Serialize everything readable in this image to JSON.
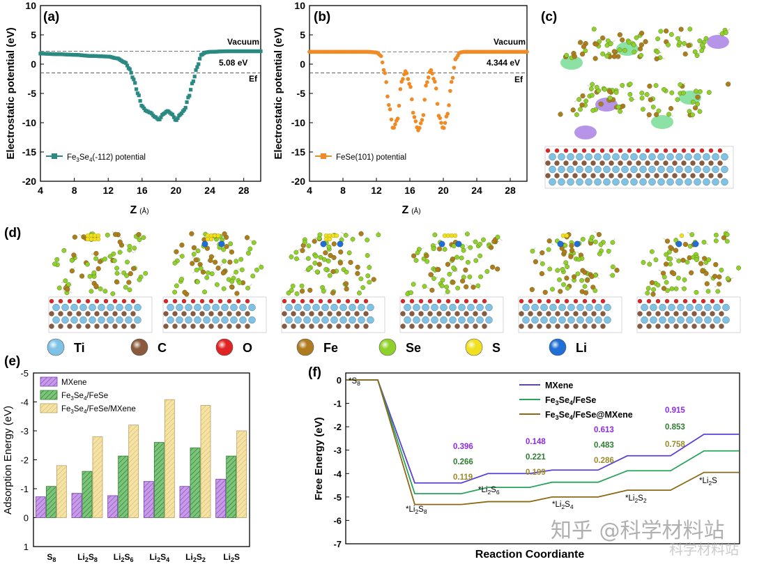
{
  "chart_data": [
    {
      "id": "a",
      "type": "line",
      "panel_label": "(a)",
      "xlabel": "Z",
      "xunit": "(Å)",
      "ylabel": "Electrostatic potential (eV)",
      "xlim": [
        4,
        30
      ],
      "ylim": [
        -20,
        10
      ],
      "xticks": [
        4,
        8,
        12,
        16,
        20,
        24,
        28
      ],
      "yticks": [
        10,
        5,
        0,
        -5,
        -10,
        -15,
        -20
      ],
      "color": "#2a8a82",
      "vacuum_level": 2.2,
      "fermi_level": -1.5,
      "vacuum_label": "Vacuum",
      "fermi_label": "Ef",
      "work_function_label": "5.08 eV",
      "legend": "Fe3Se4(-112) potential",
      "series": {
        "x": [
          4,
          6,
          8,
          10,
          12,
          13,
          14,
          14.5,
          15,
          15.5,
          16,
          16.5,
          17,
          17.5,
          18,
          18.5,
          19,
          19.5,
          20,
          20.5,
          21,
          21.5,
          22,
          22.5,
          23,
          23.5,
          24,
          26,
          28,
          30
        ],
        "y": [
          1.8,
          1.7,
          1.6,
          1.4,
          1.3,
          1.0,
          0.3,
          -0.8,
          -2.6,
          -5.0,
          -7.2,
          -8.0,
          -8.3,
          -9.0,
          -9.5,
          -8.5,
          -8.0,
          -8.5,
          -9.6,
          -8.6,
          -7.8,
          -5.6,
          -3.0,
          -0.5,
          1.6,
          2.0,
          2.1,
          2.2,
          2.2,
          2.2
        ]
      }
    },
    {
      "id": "b",
      "type": "line",
      "panel_label": "(b)",
      "xlabel": "Z",
      "xunit": "(Å)",
      "ylabel": "Electrostatic potential (eV)",
      "xlim": [
        4,
        30
      ],
      "ylim": [
        -20,
        10
      ],
      "xticks": [
        4,
        8,
        12,
        16,
        20,
        24,
        28
      ],
      "yticks": [
        10,
        5,
        0,
        -5,
        -10,
        -15,
        -20
      ],
      "color": "#f08a24",
      "vacuum_level": 2.1,
      "fermi_level": -1.5,
      "vacuum_label": "Vacuum",
      "fermi_label": "Ef",
      "work_function_label": "4.344 eV",
      "legend": "FeSe(101) potential",
      "series": {
        "x": [
          4,
          6,
          8,
          10,
          11,
          12,
          12.5,
          13,
          13.5,
          14,
          14.5,
          15,
          15.5,
          16,
          16.5,
          17,
          17.5,
          18,
          18.5,
          19,
          19.5,
          20,
          20.5,
          21,
          21.5,
          22,
          22.5,
          23,
          24,
          26,
          28,
          30
        ],
        "y": [
          2.1,
          2.1,
          2.1,
          2.1,
          2.1,
          2.0,
          1.5,
          -1.5,
          -7.0,
          -11.0,
          -9.5,
          -3.0,
          -1.2,
          -3.5,
          -9.0,
          -11.3,
          -9.5,
          -3.2,
          -1.0,
          -3.0,
          -9.0,
          -11.0,
          -8.5,
          -3.0,
          1.0,
          2.0,
          2.1,
          2.1,
          2.1,
          2.1,
          2.1,
          2.1
        ]
      }
    },
    {
      "id": "e",
      "type": "bar",
      "panel_label": "(e)",
      "ylabel": "Adsorption Energy (eV)",
      "ylim": [
        1,
        -5
      ],
      "yticks": [
        -5,
        -4,
        -3,
        -2,
        -1,
        0,
        1
      ],
      "categories": [
        "S8",
        "Li2S8",
        "Li2S6",
        "Li2S4",
        "Li2S2",
        "Li2S"
      ],
      "category_labels": [
        {
          "main": "S",
          "sub": "8",
          "tail": ""
        },
        {
          "main": "Li",
          "sub": "2",
          "tail": "S",
          "sub2": "8"
        },
        {
          "main": "Li",
          "sub": "2",
          "tail": "S",
          "sub2": "6"
        },
        {
          "main": "Li",
          "sub": "2",
          "tail": "S",
          "sub2": "4"
        },
        {
          "main": "Li",
          "sub": "2",
          "tail": "S",
          "sub2": "2"
        },
        {
          "main": "Li",
          "sub": "2",
          "tail": "S",
          "sub2": ""
        }
      ],
      "series": [
        {
          "name": "MXene",
          "color": "#b27ad9",
          "values": [
            -0.72,
            -0.84,
            -0.76,
            -1.25,
            -1.08,
            -1.33
          ]
        },
        {
          "name": "Fe3Se4/FeSe",
          "color": "#5cb35c",
          "values": [
            -1.08,
            -1.6,
            -2.13,
            -2.6,
            -2.41,
            -2.13
          ]
        },
        {
          "name": "Fe3Se4/FeSe/MXene",
          "color": "#f0dc9a",
          "values": [
            -1.8,
            -2.8,
            -3.2,
            -4.08,
            -3.88,
            -3.0
          ]
        }
      ]
    },
    {
      "id": "f",
      "type": "line",
      "panel_label": "(f)",
      "xlabel": "Reaction Coordiante",
      "ylabel": "Free Energy (eV)",
      "ylim": [
        -7,
        0
      ],
      "yticks": [
        0,
        -1,
        -2,
        -3,
        -4,
        -5,
        -6,
        -7
      ],
      "steps": [
        "*S8",
        "*Li2S8",
        "*Li2S6",
        "*Li2S4",
        "*Li2S2",
        "*Li2S"
      ],
      "series": [
        {
          "name": "MXene",
          "color": "#5b3fd6",
          "values": [
            0,
            -4.4,
            -4.0,
            -3.85,
            -3.24,
            -2.32
          ],
          "step_labels": [
            "0.396",
            "0.148",
            "0.613",
            "0.915"
          ],
          "label_color": "#8a2be2"
        },
        {
          "name": "Fe3Se4/FeSe",
          "color": "#27a35a",
          "values": [
            0,
            -4.86,
            -4.59,
            -4.37,
            -3.88,
            -3.03
          ],
          "step_labels": [
            "0.266",
            "0.221",
            "0.483",
            "0.853"
          ],
          "label_color": "#2e7d32"
        },
        {
          "name": "Fe3Se4/FeSe@MXene",
          "color": "#8b6914",
          "values": [
            0,
            -5.32,
            -5.2,
            -5.0,
            -4.71,
            -3.95
          ],
          "step_labels": [
            "0.119",
            "0.199",
            "0.286",
            "0.758"
          ],
          "label_color": "#9a8a2a"
        }
      ]
    }
  ],
  "panels": {
    "c_label": "(c)",
    "d_label": "(d)"
  },
  "element_legend": [
    {
      "symbol": "Ti",
      "color": "#7ec3e6"
    },
    {
      "symbol": "C",
      "color": "#8a5a3c"
    },
    {
      "symbol": "O",
      "color": "#e02424"
    },
    {
      "symbol": "Fe",
      "color": "#b07a1e"
    },
    {
      "symbol": "Se",
      "color": "#8fd12a"
    },
    {
      "symbol": "S",
      "color": "#f0e020"
    },
    {
      "symbol": "Li",
      "color": "#1f6fd6"
    }
  ],
  "watermark": {
    "primary": "知乎 @科学材料站",
    "secondary": "科学材料站"
  }
}
